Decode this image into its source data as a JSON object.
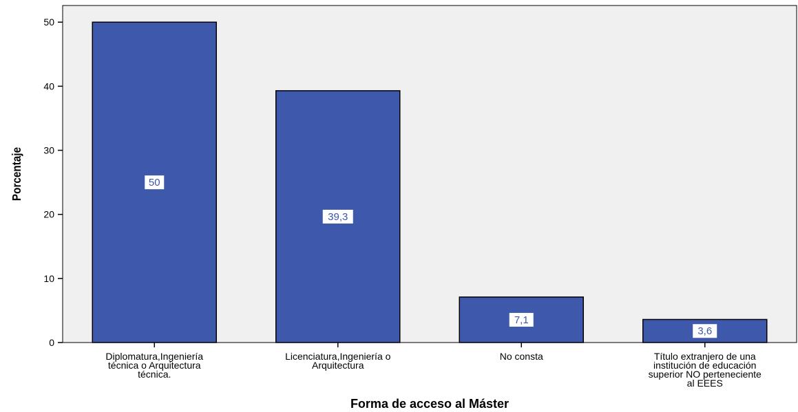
{
  "chart_data": {
    "type": "bar",
    "categories": [
      "Diplomatura,Ingeniería técnica o Arquitectura técnica.",
      "Licenciatura,Ingeniería o Arquitectura",
      "No consta",
      "Título extranjero de una institución de educación superior NO pertenenciente al EEES"
    ],
    "category_lines": [
      [
        "Diplomatura,Ingeniería",
        "técnica o Arquitectura",
        "técnica."
      ],
      [
        "Licenciatura,Ingeniería o",
        "Arquitectura"
      ],
      [
        "No consta"
      ],
      [
        "Título extranjero de una",
        "institución de educación",
        "superior NO perteneciente",
        "al EEES"
      ]
    ],
    "values": [
      50,
      39.3,
      7.1,
      3.6
    ],
    "data_labels": [
      "50",
      "39,3",
      "7,1",
      "3,6"
    ],
    "xlabel": "Forma de acceso al Máster",
    "ylabel": "Porcentaje",
    "ylim": [
      0,
      52.6
    ],
    "yticks": [
      0,
      10,
      20,
      30,
      40,
      50
    ],
    "grid": false,
    "colors": {
      "bar_fill": "#3e59ab",
      "bar_stroke": "#000000",
      "plot_background": "#f0f0f0",
      "label_text": "#3d55a8"
    }
  }
}
